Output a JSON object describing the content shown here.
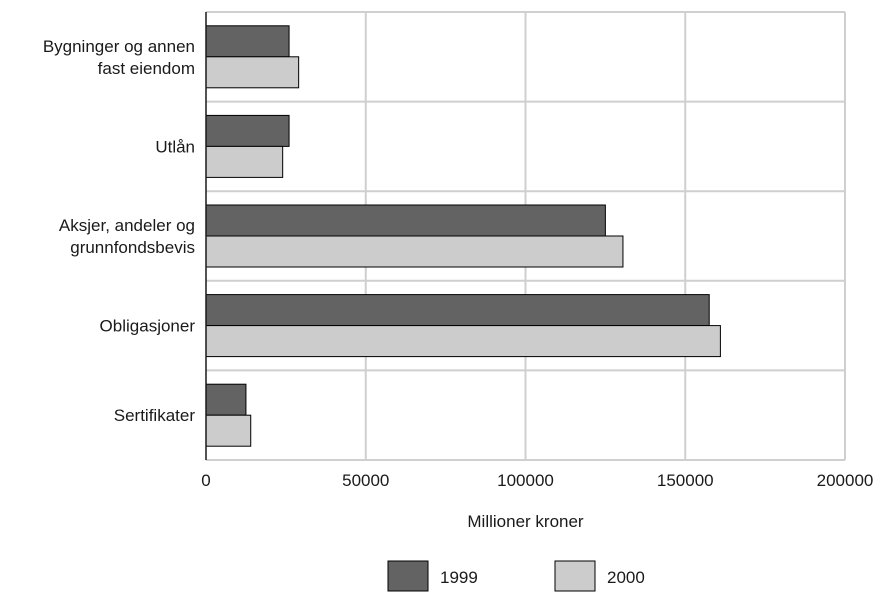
{
  "chart_data": {
    "type": "bar",
    "orientation": "horizontal",
    "categories": [
      "Bygninger og annen fast eiendom",
      "Utlån",
      "Aksjer, andeler og grunnfondsbevis",
      "Obligasjoner",
      "Sertifikater"
    ],
    "category_lines": [
      [
        "Bygninger og annen",
        "fast eiendom"
      ],
      [
        "Utlån"
      ],
      [
        "Aksjer, andeler og",
        "grunnfondsbevis"
      ],
      [
        "Obligasjoner"
      ],
      [
        "Sertifikater"
      ]
    ],
    "series": [
      {
        "name": "1999",
        "color": "#636363",
        "values": [
          26000,
          26000,
          125000,
          157500,
          12500
        ]
      },
      {
        "name": "2000",
        "color": "#cccccc",
        "values": [
          29000,
          24000,
          130500,
          161000,
          14000
        ]
      }
    ],
    "xlabel": "Millioner kroner",
    "ylabel": "",
    "xlim": [
      0,
      200000
    ],
    "xticks": [
      0,
      50000,
      100000,
      150000,
      200000
    ],
    "xtick_labels": [
      "0",
      "50000",
      "100000",
      "150000",
      "200000"
    ],
    "grid": true,
    "legend_position": "bottom"
  }
}
